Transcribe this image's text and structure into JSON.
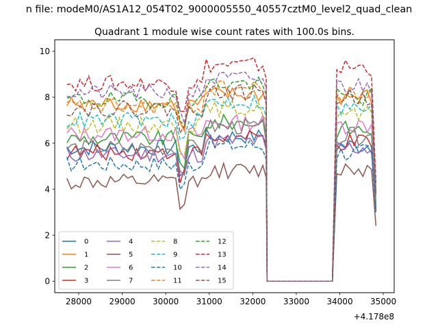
{
  "chart_data": {
    "type": "line",
    "suptitle": "n file: modeM0/AS1A12_054T02_9000005550_40557cztM0_level2_quad_clean",
    "title": "Quadrant 1 module wise count rates with 100.0s bins.",
    "xlabel": "",
    "ylabel": "",
    "x_offset_label": "+4.178e8",
    "xlim": [
      27450,
      35250
    ],
    "ylim": [
      -0.5,
      10.5
    ],
    "x_ticks": [
      28000,
      29000,
      30000,
      31000,
      32000,
      33000,
      34000,
      35000
    ],
    "x_tick_labels": [
      "28000",
      "29000",
      "30000",
      "31000",
      "32000",
      "33000",
      "34000",
      "35000"
    ],
    "y_ticks": [
      0,
      2,
      4,
      6,
      8,
      10
    ],
    "y_tick_labels": [
      "0",
      "2",
      "4",
      "6",
      "8",
      "10"
    ],
    "grid": false,
    "legend_placement": "lower-left",
    "legend_columns": 4,
    "x_segments": [
      {
        "start": 27730,
        "end": 32330,
        "step": 100
      },
      {
        "start": 32330,
        "end": 33830,
        "step": 100
      },
      {
        "start": 33830,
        "end": 34830,
        "step": 100
      }
    ],
    "series": [
      {
        "name": "0",
        "color": "#1f77b4",
        "dash": "solid",
        "base1": 5.8,
        "peak1": 6.3,
        "base2": 5.9,
        "end": 3.1
      },
      {
        "name": "1",
        "color": "#ff7f0e",
        "dash": "solid",
        "base1": 7.7,
        "peak1": 8.1,
        "base2": 8.0,
        "end": 3.5
      },
      {
        "name": "2",
        "color": "#2ca02c",
        "dash": "solid",
        "base1": 6.2,
        "peak1": 6.9,
        "base2": 6.6,
        "end": 3.3
      },
      {
        "name": "3",
        "color": "#d62728",
        "dash": "solid",
        "base1": 5.6,
        "peak1": 6.2,
        "base2": 6.0,
        "end": 3.0
      },
      {
        "name": "4",
        "color": "#9467bd",
        "dash": "solid",
        "base1": 5.5,
        "peak1": 6.1,
        "base2": 5.8,
        "end": 3.0
      },
      {
        "name": "5",
        "color": "#8c564b",
        "dash": "solid",
        "base1": 4.3,
        "peak1": 4.8,
        "base2": 4.9,
        "end": 2.4
      },
      {
        "name": "6",
        "color": "#e377c2",
        "dash": "solid",
        "base1": 6.4,
        "peak1": 6.9,
        "base2": 6.8,
        "end": 3.4
      },
      {
        "name": "7",
        "color": "#7f7f7f",
        "dash": "solid",
        "base1": 5.8,
        "peak1": 6.7,
        "base2": 6.3,
        "end": 3.2
      },
      {
        "name": "8",
        "color": "#bcbd22",
        "dash": "dashed",
        "base1": 6.8,
        "peak1": 7.5,
        "base2": 7.2,
        "end": 3.6
      },
      {
        "name": "9",
        "color": "#17becf",
        "dash": "dashed",
        "base1": 7.0,
        "peak1": 7.8,
        "base2": 7.5,
        "end": 3.7
      },
      {
        "name": "10",
        "color": "#1f77b4",
        "dash": "dashed",
        "base1": 5.1,
        "peak1": 5.9,
        "base2": 5.6,
        "end": 3.0
      },
      {
        "name": "11",
        "color": "#ff7f0e",
        "dash": "dashed",
        "base1": 7.6,
        "peak1": 8.4,
        "base2": 8.1,
        "end": 3.8
      },
      {
        "name": "12",
        "color": "#2ca02c",
        "dash": "dashed",
        "base1": 7.9,
        "peak1": 8.6,
        "base2": 8.0,
        "end": 3.8
      },
      {
        "name": "13",
        "color": "#d62728",
        "dash": "dashed",
        "base1": 8.6,
        "peak1": 9.4,
        "base2": 9.3,
        "end": 4.3
      },
      {
        "name": "14",
        "color": "#9467bd",
        "dash": "dashed",
        "base1": 8.2,
        "peak1": 8.8,
        "base2": 8.5,
        "end": 4.0
      },
      {
        "name": "15",
        "color": "#8c564b",
        "dash": "dashed",
        "base1": 7.5,
        "peak1": 8.2,
        "base2": 8.0,
        "end": 3.7
      }
    ]
  }
}
